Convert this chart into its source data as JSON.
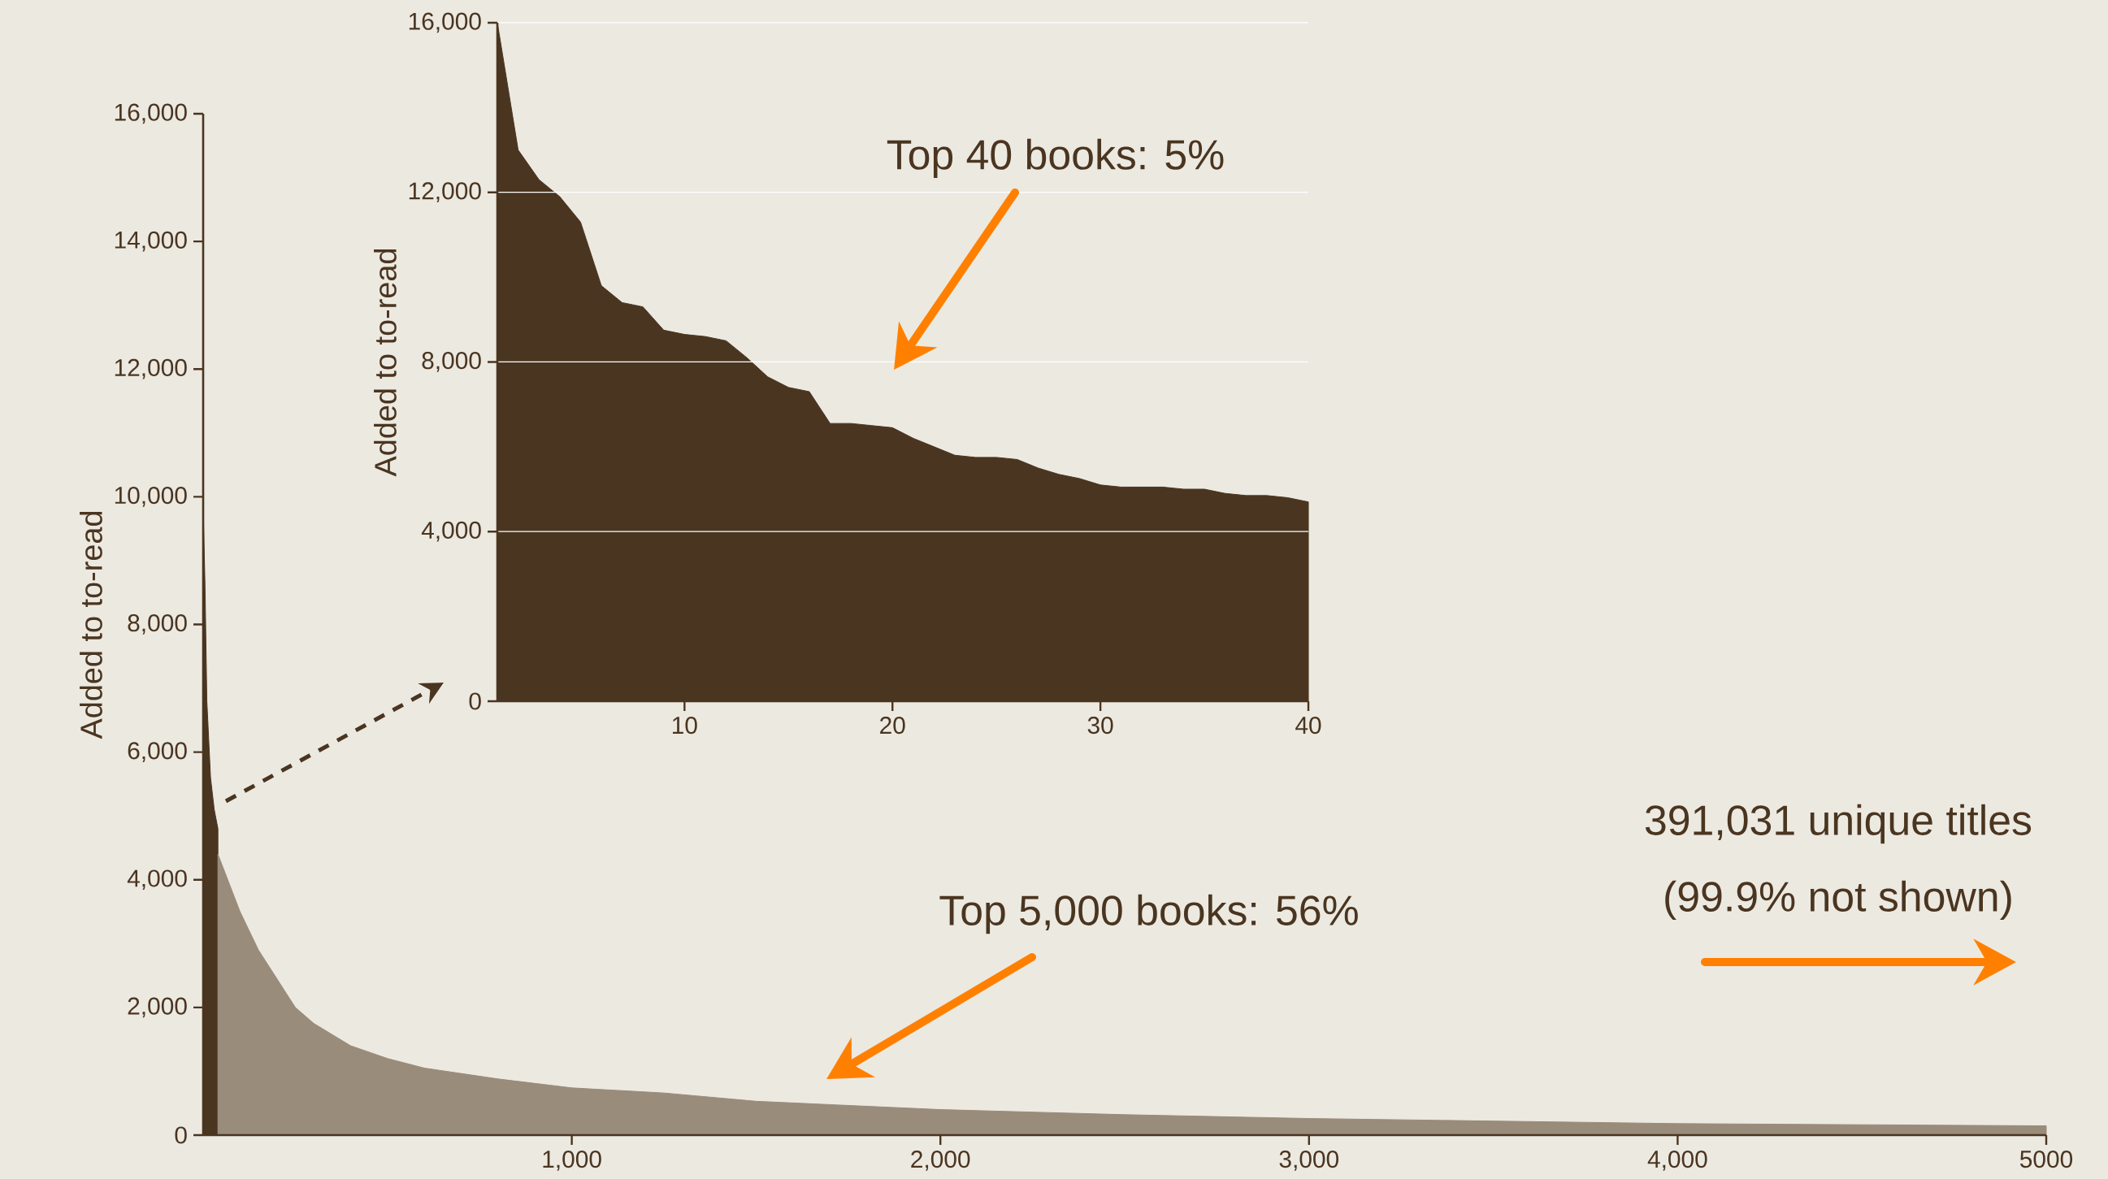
{
  "chart_data": [
    {
      "type": "area",
      "ylabel": "Added to to-read",
      "xlim": [
        0,
        5000
      ],
      "xticks": [
        {
          "value": 1000,
          "label": "1,000"
        },
        {
          "value": 2000,
          "label": "2,000"
        },
        {
          "value": 3000,
          "label": "3,000"
        },
        {
          "value": 4000,
          "label": "4,000"
        },
        {
          "value": 5000,
          "label": "5000"
        }
      ],
      "ylim": [
        0,
        16000
      ],
      "yticks": [
        0,
        {
          "value": 2000,
          "label": "2,000"
        },
        {
          "value": 4000,
          "label": "4,000"
        },
        {
          "value": 6000,
          "label": "6,000"
        },
        {
          "value": 8000,
          "label": "8,000"
        },
        {
          "value": 10000,
          "label": "10,000"
        },
        {
          "value": 12000,
          "label": "12,000"
        },
        {
          "value": 14000,
          "label": "14,000"
        },
        {
          "value": 16000,
          "label": "16,000"
        }
      ],
      "series": [
        {
          "color": "#4a3520",
          "x": [
            1,
            5,
            10,
            20,
            30,
            40
          ],
          "values": [
            9600,
            8600,
            6800,
            5600,
            5100,
            4800
          ]
        },
        {
          "color": "#9a8c7a",
          "x": [
            40,
            60,
            100,
            150,
            200,
            250,
            300,
            400,
            500,
            600,
            800,
            1000,
            1250,
            1500,
            2000,
            2500,
            3000,
            4000,
            5000
          ],
          "values": [
            4400,
            4100,
            3500,
            2900,
            2450,
            2000,
            1750,
            1400,
            1200,
            1050,
            880,
            740,
            660,
            530,
            400,
            320,
            260,
            180,
            145
          ]
        }
      ],
      "annotations": [
        "Top 5,000 books: 56%",
        "391,031 unique titles",
        "(99.9% not shown)"
      ]
    },
    {
      "type": "area",
      "ylabel": "Added to to-read",
      "grid": "y",
      "xlim": [
        1,
        40
      ],
      "xticks": [
        10,
        20,
        30,
        40
      ],
      "ylim": [
        0,
        16000
      ],
      "yticks": [
        0,
        {
          "value": 4000,
          "label": "4,000"
        },
        {
          "value": 8000,
          "label": "8,000"
        },
        {
          "value": 12000,
          "label": "12,000"
        },
        {
          "value": 16000,
          "label": "16,000"
        }
      ],
      "series": [
        {
          "color": "#4a3520",
          "x": [
            1,
            2,
            3,
            4,
            5,
            6,
            7,
            8,
            9,
            10,
            11,
            12,
            13,
            14,
            15,
            16,
            17,
            18,
            19,
            20,
            21,
            22,
            23,
            24,
            25,
            26,
            27,
            28,
            29,
            30,
            31,
            32,
            33,
            34,
            35,
            36,
            37,
            38,
            39,
            40
          ],
          "values": [
            16000,
            13000,
            12300,
            11900,
            11300,
            9800,
            9400,
            9300,
            8750,
            8650,
            8600,
            8500,
            8100,
            7650,
            7400,
            7300,
            6550,
            6550,
            6500,
            6450,
            6200,
            6000,
            5800,
            5750,
            5750,
            5700,
            5500,
            5350,
            5250,
            5100,
            5050,
            5050,
            5050,
            5000,
            5000,
            4900,
            4850,
            4850,
            4800,
            4700
          ]
        }
      ],
      "annotations": [
        "Top 40 books: 5%"
      ]
    }
  ]
}
